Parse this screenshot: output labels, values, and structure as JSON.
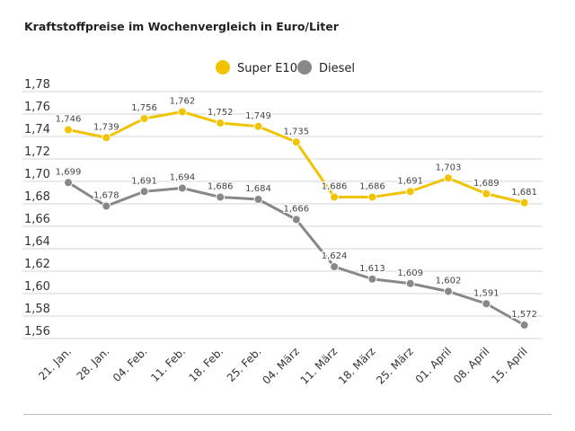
{
  "chart_data": {
    "type": "line",
    "title": "Kraftstoffpreise im Wochenvergleich in Euro/Liter",
    "xlabel": "",
    "ylabel": "",
    "categories": [
      "21. Jan.",
      "28. Jan.",
      "04. Feb.",
      "11. Feb.",
      "18. Feb.",
      "25. Feb.",
      "04. März",
      "11. März",
      "18. März",
      "25. März",
      "01. April",
      "08. April",
      "15. April"
    ],
    "series": [
      {
        "name": "Super E10",
        "color": "#f2c300",
        "values": [
          1.746,
          1.739,
          1.756,
          1.762,
          1.752,
          1.749,
          1.735,
          1.686,
          1.686,
          1.691,
          1.703,
          1.689,
          1.681
        ],
        "labels": [
          "1,746",
          "1,739",
          "1,756",
          "1,762",
          "1,752",
          "1,749",
          "1,735",
          "1,686",
          "1,686",
          "1,691",
          "1,703",
          "1,689",
          "1,681"
        ]
      },
      {
        "name": "Diesel",
        "color": "#888888",
        "values": [
          1.699,
          1.678,
          1.691,
          1.694,
          1.686,
          1.684,
          1.666,
          1.624,
          1.613,
          1.609,
          1.602,
          1.591,
          1.572
        ],
        "labels": [
          "1,699",
          "1,678",
          "1,691",
          "1,694",
          "1,686",
          "1,684",
          "1,666",
          "1,624",
          "1,613",
          "1,609",
          "1,602",
          "1,591",
          "1,572"
        ]
      }
    ],
    "ylim": [
      1.56,
      1.78
    ],
    "yticks": [
      1.78,
      1.76,
      1.74,
      1.72,
      1.7,
      1.68,
      1.66,
      1.64,
      1.62,
      1.6,
      1.58,
      1.56
    ],
    "ytick_labels": [
      "1,78",
      "1,76",
      "1,74",
      "1,72",
      "1,70",
      "1,68",
      "1,66",
      "1,64",
      "1,62",
      "1,60",
      "1,58",
      "1,56"
    ],
    "grid": true,
    "legend_position": "top-center"
  }
}
